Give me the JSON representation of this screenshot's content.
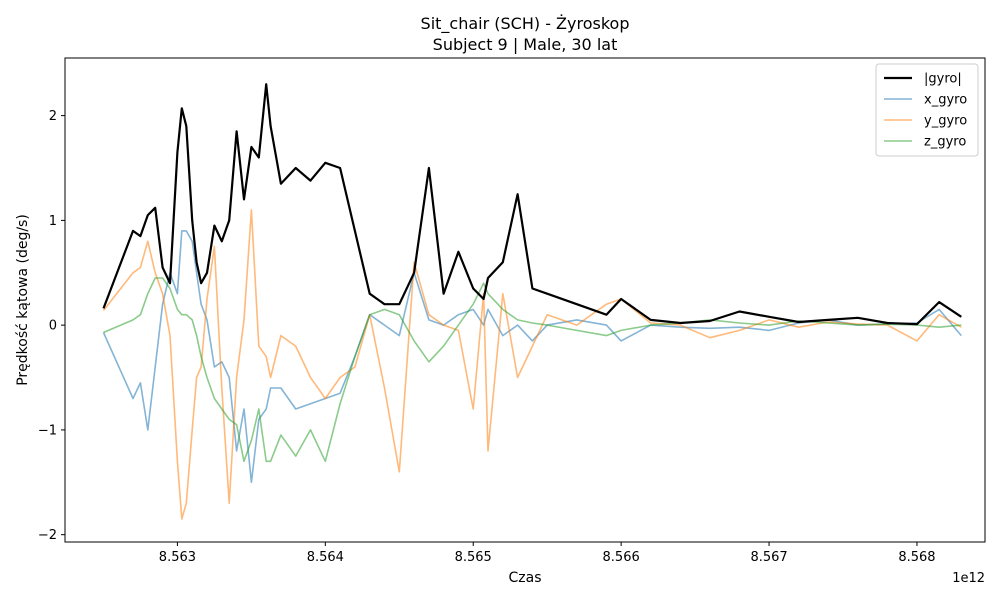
{
  "chart_data": {
    "type": "line",
    "title": "Sit_chair (SCH) - Żyroskop",
    "subtitle": "Subject 9 | Male, 30 lat",
    "xlabel": "Czas",
    "ylabel": "Prędkość kątowa (deg/s)",
    "x_offset_label": "1e12",
    "xlim": [
      8.56224,
      8.56846
    ],
    "ylim": [
      -2.07,
      2.55
    ],
    "x_ticks": [
      8.563,
      8.564,
      8.565,
      8.566,
      8.567,
      8.568
    ],
    "x_tick_labels": [
      "8.563",
      "8.564",
      "8.565",
      "8.566",
      "8.567",
      "8.568"
    ],
    "y_ticks": [
      -2,
      -1,
      0,
      1,
      2
    ],
    "y_tick_labels": [
      "−2",
      "−1",
      "0",
      "1",
      "2"
    ],
    "grid": false,
    "legend_position": "top-right",
    "x": [
      8.5625,
      8.5627,
      8.56275,
      8.5628,
      8.56285,
      8.5629,
      8.56295,
      8.563,
      8.56303,
      8.56306,
      8.5631,
      8.56313,
      8.56316,
      8.5632,
      8.56325,
      8.5633,
      8.56335,
      8.5634,
      8.56345,
      8.5635,
      8.56355,
      8.5636,
      8.56363,
      8.5637,
      8.5638,
      8.5639,
      8.564,
      8.5641,
      8.5642,
      8.5643,
      8.5644,
      8.5645,
      8.5646,
      8.5647,
      8.5648,
      8.5649,
      8.565,
      8.56507,
      8.5651,
      8.5652,
      8.5653,
      8.5654,
      8.5655,
      8.5657,
      8.5659,
      8.566,
      8.5662,
      8.5664,
      8.5666,
      8.5668,
      8.567,
      8.5672,
      8.5674,
      8.5676,
      8.5678,
      8.568,
      8.56815,
      8.5683
    ],
    "series": [
      {
        "name": "|gyro|",
        "color": "#000000",
        "values": [
          0.16,
          0.9,
          0.85,
          1.05,
          1.12,
          0.55,
          0.4,
          1.65,
          2.07,
          1.9,
          1.0,
          0.6,
          0.4,
          0.5,
          0.95,
          0.8,
          1.0,
          1.85,
          1.2,
          1.7,
          1.6,
          2.3,
          1.9,
          1.35,
          1.5,
          1.38,
          1.55,
          1.5,
          0.9,
          0.3,
          0.2,
          0.2,
          0.5,
          1.5,
          0.3,
          0.7,
          0.35,
          0.25,
          0.45,
          0.6,
          1.25,
          0.35,
          0.3,
          0.2,
          0.1,
          0.25,
          0.05,
          0.02,
          0.04,
          0.13,
          0.08,
          0.03,
          0.05,
          0.07,
          0.02,
          0.01,
          0.22,
          0.08
        ]
      },
      {
        "name": "x_gyro",
        "color": "#1f77b4",
        "values": [
          -0.07,
          -0.7,
          -0.55,
          -1.0,
          -0.4,
          0.2,
          0.5,
          0.3,
          0.9,
          0.9,
          0.8,
          0.5,
          0.2,
          0.05,
          -0.4,
          -0.35,
          -0.5,
          -1.2,
          -0.8,
          -1.5,
          -0.9,
          -0.8,
          -0.6,
          -0.6,
          -0.8,
          -0.75,
          -0.7,
          -0.65,
          -0.3,
          0.1,
          0.0,
          -0.1,
          0.5,
          0.05,
          0.0,
          0.1,
          0.15,
          0.0,
          0.15,
          -0.1,
          0.0,
          -0.15,
          0.0,
          0.05,
          0.0,
          -0.15,
          0.0,
          -0.02,
          -0.03,
          -0.02,
          -0.05,
          0.02,
          0.05,
          0.0,
          0.01,
          0.02,
          0.15,
          -0.1
        ]
      },
      {
        "name": "y_gyro",
        "color": "#ff7f0e",
        "values": [
          0.14,
          0.5,
          0.55,
          0.8,
          0.5,
          0.3,
          -0.1,
          -1.3,
          -1.85,
          -1.7,
          -1.0,
          -0.5,
          -0.4,
          0.25,
          0.75,
          -0.6,
          -1.7,
          -0.5,
          0.05,
          1.1,
          -0.2,
          -0.3,
          -0.5,
          -0.1,
          -0.2,
          -0.5,
          -0.7,
          -0.5,
          -0.4,
          0.1,
          -0.6,
          -1.4,
          0.6,
          0.1,
          0.0,
          -0.05,
          -0.8,
          0.3,
          -1.2,
          0.3,
          -0.5,
          -0.2,
          0.1,
          0.0,
          0.2,
          0.25,
          0.02,
          0.0,
          -0.12,
          -0.05,
          0.05,
          -0.02,
          0.03,
          0.01,
          0.0,
          -0.15,
          0.1,
          -0.02
        ]
      },
      {
        "name": "z_gyro",
        "color": "#2ca02c",
        "values": [
          -0.07,
          0.05,
          0.1,
          0.3,
          0.45,
          0.45,
          0.35,
          0.15,
          0.1,
          0.1,
          0.05,
          -0.1,
          -0.3,
          -0.5,
          -0.7,
          -0.8,
          -0.9,
          -0.95,
          -1.3,
          -1.1,
          -0.8,
          -1.3,
          -1.3,
          -1.05,
          -1.25,
          -1.0,
          -1.3,
          -0.75,
          -0.3,
          0.1,
          0.15,
          0.1,
          -0.15,
          -0.35,
          -0.2,
          0.0,
          0.2,
          0.4,
          0.3,
          0.15,
          0.05,
          0.02,
          0.0,
          -0.05,
          -0.1,
          -0.05,
          0.0,
          0.02,
          0.05,
          0.02,
          0.0,
          0.04,
          0.02,
          0.0,
          0.01,
          0.0,
          -0.02,
          0.0
        ]
      }
    ]
  }
}
